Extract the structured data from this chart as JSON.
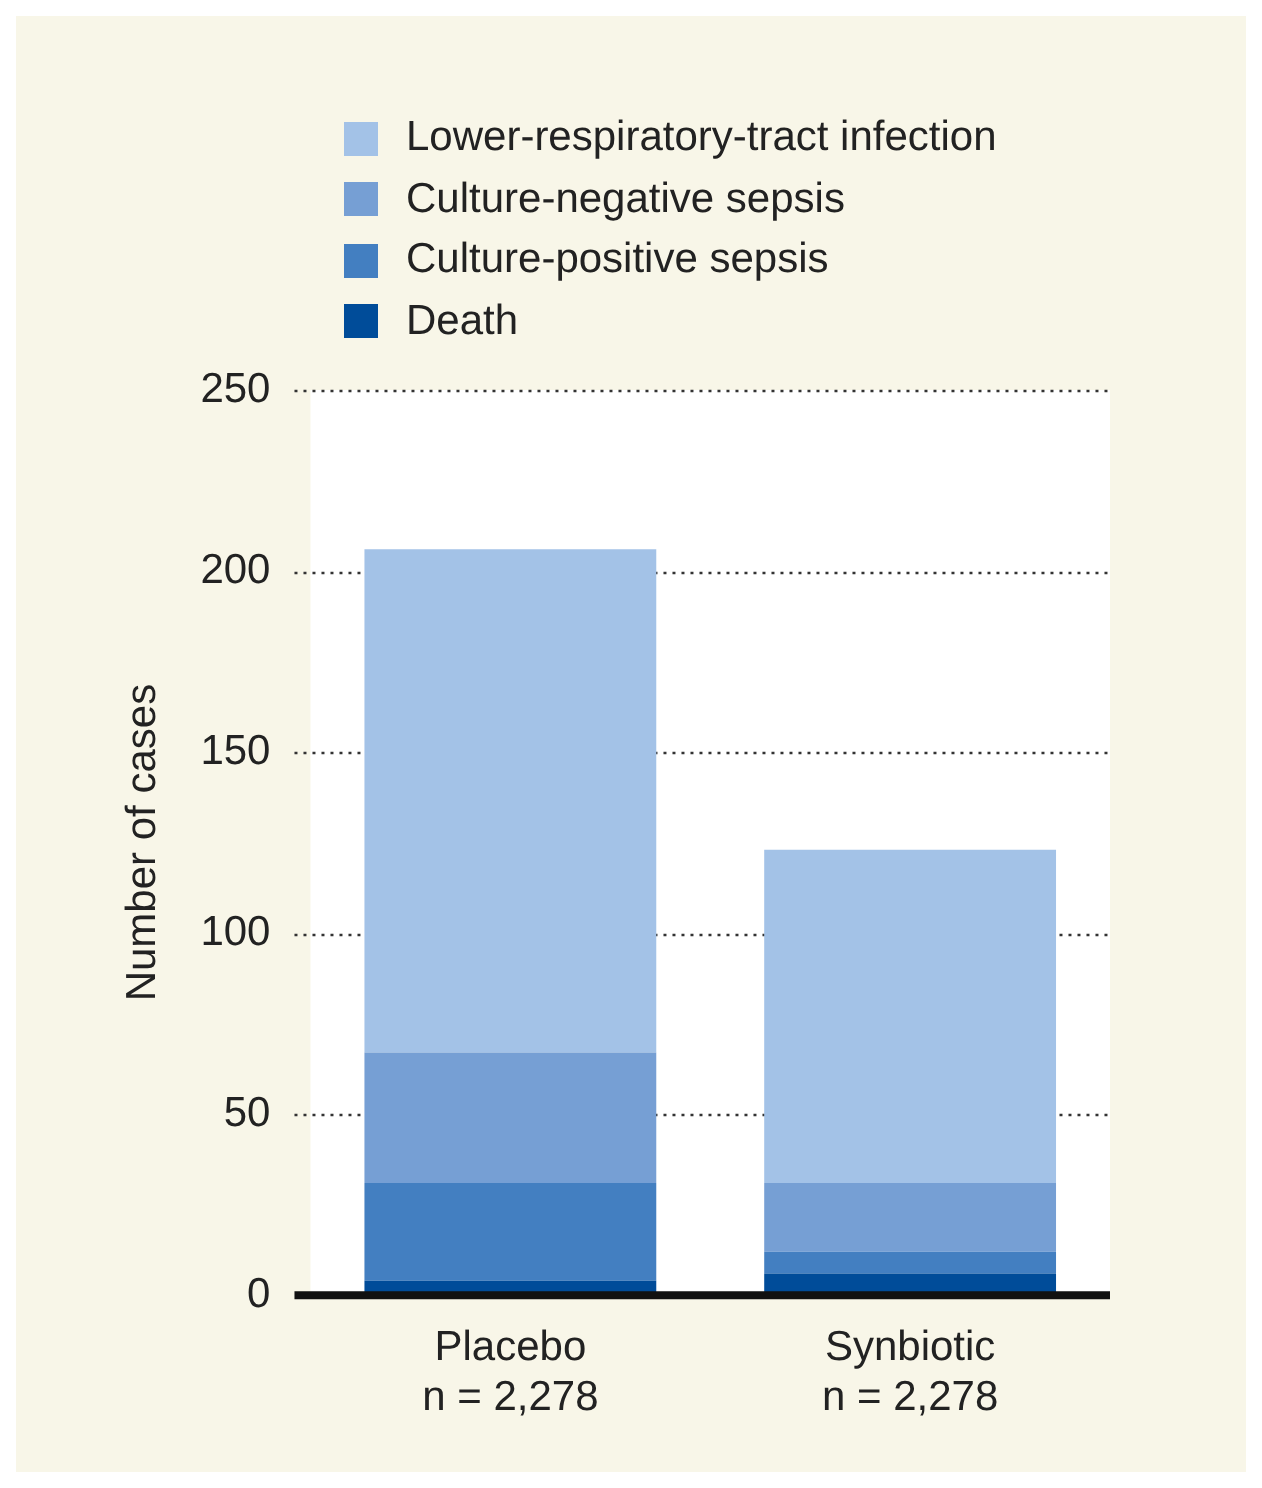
{
  "chart_data": {
    "type": "bar",
    "stacked": true,
    "ylabel": "Number of cases",
    "categories": [
      "Placebo\nn = 2,278",
      "Synbiotic\nn = 2,278"
    ],
    "series": [
      {
        "name": "Death",
        "color": "#004c99",
        "values": [
          4,
          6
        ]
      },
      {
        "name": "Culture-positive sepsis",
        "color": "#437fc1",
        "values": [
          27,
          6
        ]
      },
      {
        "name": "Culture-negative sepsis",
        "color": "#769fd4",
        "values": [
          36,
          19
        ]
      },
      {
        "name": "Lower-respiratory-tract infection",
        "color": "#a3c2e7",
        "values": [
          139,
          92
        ]
      }
    ],
    "ylim": [
      0,
      250
    ],
    "yticks": [
      0,
      50,
      100,
      150,
      200,
      250
    ],
    "grid": "y",
    "legend": "top left"
  }
}
